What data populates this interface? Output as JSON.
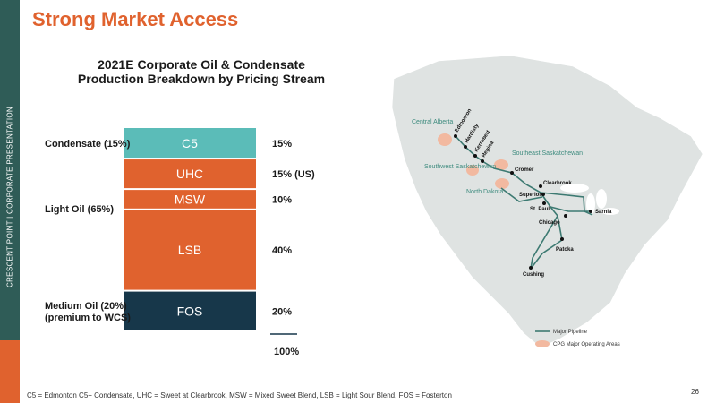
{
  "sidebar": {
    "label": "CRESCENT POINT   |   CORPORATE PRESENTATION"
  },
  "page_title": "Strong Market Access",
  "chart_data": {
    "type": "bar",
    "title_lines": [
      "2021E Corporate Oil & Condensate",
      "Production Breakdown by Pricing Stream"
    ],
    "segments": [
      {
        "label": "C5",
        "value": 15,
        "value_label": "15%",
        "color": "#5bbcb8",
        "label_color": "#ffffff"
      },
      {
        "label": "UHC",
        "value": 15,
        "value_label": "15% (US)",
        "color": "#e0622e",
        "label_color": "#ffffff"
      },
      {
        "label": "MSW",
        "value": 10,
        "value_label": "10%",
        "color": "#e0622e",
        "label_color": "#ffffff"
      },
      {
        "label": "LSB",
        "value": 40,
        "value_label": "40%",
        "color": "#e0622e",
        "label_color": "#ffffff"
      },
      {
        "label": "FOS",
        "value": 20,
        "value_label": "20%",
        "color": "#17374a",
        "label_color": "#ffffff"
      }
    ],
    "groups": [
      {
        "lines": [
          "Condensate (15%)"
        ]
      },
      {
        "lines": [
          "Light Oil (65%)"
        ]
      },
      {
        "lines": [
          "Medium Oil (20%)",
          "(premium to WCS)"
        ]
      }
    ],
    "total_label": "100%"
  },
  "map": {
    "regions": [
      "Central Alberta",
      "Southwest Saskatchewan",
      "Southeast Saskatchewan",
      "North Dakota"
    ],
    "cities": [
      "Edmonton",
      "Hardisty",
      "Kerrobert",
      "Regina",
      "Cromer",
      "Clearbrook",
      "Superior",
      "St. Paul",
      "Chicago",
      "Sarnia",
      "Patoka",
      "Cushing"
    ],
    "legend": {
      "pipeline": "Major Pipeline",
      "areas": "CPG Major Operating Areas"
    }
  },
  "footnote": "C5 = Edmonton C5+ Condensate, UHC = Sweet at Clearbrook, MSW = Mixed Sweet Blend, LSB = Light Sour Blend, FOS = Fosterton",
  "page_number": "26",
  "colors": {
    "accent": "#e0622e",
    "sidebar": "#2f5c57",
    "teal": "#5bbcb8",
    "navy": "#17374a",
    "pipeline": "#3d7a72",
    "area": "#f2b9a0"
  }
}
